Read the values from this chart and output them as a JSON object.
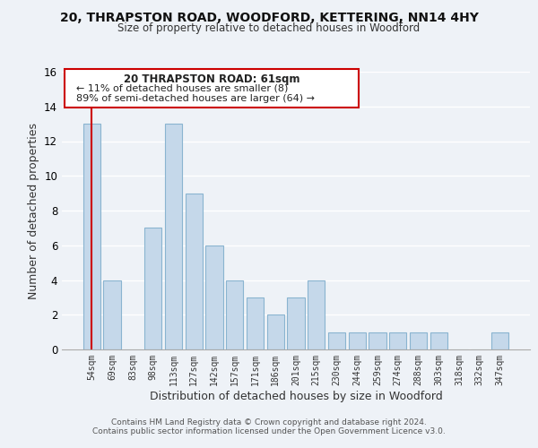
{
  "title1": "20, THRAPSTON ROAD, WOODFORD, KETTERING, NN14 4HY",
  "title2": "Size of property relative to detached houses in Woodford",
  "xlabel": "Distribution of detached houses by size in Woodford",
  "ylabel": "Number of detached properties",
  "bar_values": [
    13,
    4,
    0,
    7,
    13,
    9,
    6,
    4,
    3,
    2,
    3,
    4,
    1,
    1,
    1,
    1,
    1,
    1,
    0,
    0,
    1
  ],
  "bin_labels": [
    "54sqm",
    "69sqm",
    "83sqm",
    "98sqm",
    "113sqm",
    "127sqm",
    "142sqm",
    "157sqm",
    "171sqm",
    "186sqm",
    "201sqm",
    "215sqm",
    "230sqm",
    "244sqm",
    "259sqm",
    "274sqm",
    "288sqm",
    "303sqm",
    "318sqm",
    "332sqm",
    "347sqm"
  ],
  "bar_color": "#c5d8ea",
  "bar_edge_color": "#8ab4d0",
  "ylim": [
    0,
    16
  ],
  "yticks": [
    0,
    2,
    4,
    6,
    8,
    10,
    12,
    14,
    16
  ],
  "annotation_line1": "20 THRAPSTON ROAD: 61sqm",
  "annotation_line2": "← 11% of detached houses are smaller (8)",
  "annotation_line3": "89% of semi-detached houses are larger (64) →",
  "annotation_box_color": "#ffffff",
  "annotation_border_color": "#cc0000",
  "property_line_color": "#cc0000",
  "footer1": "Contains HM Land Registry data © Crown copyright and database right 2024.",
  "footer2": "Contains public sector information licensed under the Open Government Licence v3.0.",
  "background_color": "#eef2f7",
  "plot_bg_color": "#eef2f7",
  "grid_color": "#ffffff"
}
